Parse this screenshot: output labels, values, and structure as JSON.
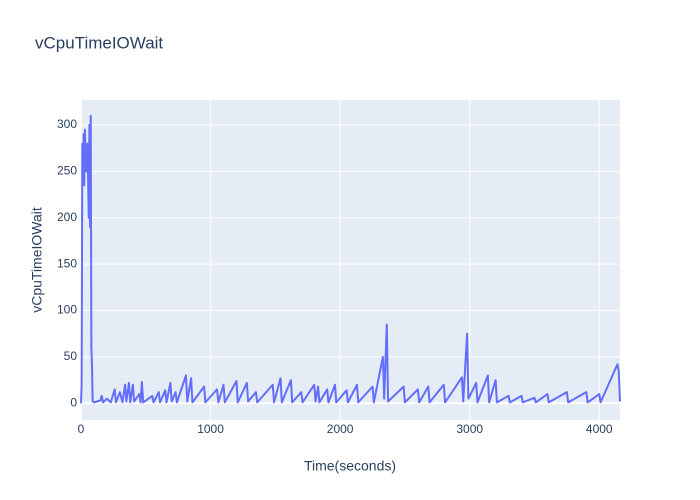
{
  "chart_data": {
    "type": "line",
    "title": "vCpuTimeIOWait",
    "x_label": "Time(seconds)",
    "y_label": "vCpuTimeIOWait",
    "color": "#636efa",
    "grid": true,
    "x": [
      0,
      5,
      10,
      15,
      20,
      25,
      30,
      40,
      50,
      60,
      65,
      70,
      75,
      80,
      85,
      90,
      100,
      150,
      160,
      170,
      200,
      230,
      260,
      270,
      300,
      320,
      340,
      350,
      370,
      380,
      400,
      410,
      450,
      460,
      470,
      480,
      550,
      560,
      600,
      610,
      650,
      660,
      690,
      700,
      730,
      740,
      810,
      820,
      850,
      860,
      950,
      960,
      1050,
      1060,
      1100,
      1110,
      1200,
      1210,
      1280,
      1290,
      1350,
      1360,
      1480,
      1490,
      1540,
      1550,
      1620,
      1630,
      1700,
      1710,
      1800,
      1810,
      1830,
      1840,
      1900,
      1910,
      1960,
      1970,
      2050,
      2060,
      2130,
      2140,
      2250,
      2260,
      2330,
      2340,
      2360,
      2370,
      2490,
      2500,
      2600,
      2610,
      2680,
      2690,
      2800,
      2810,
      2940,
      2950,
      2980,
      2990,
      3050,
      3060,
      3140,
      3150,
      3200,
      3210,
      3300,
      3310,
      3400,
      3410,
      3500,
      3510,
      3600,
      3610,
      3750,
      3760,
      3900,
      3910,
      4000,
      4010,
      4140,
      4150,
      4160
    ],
    "values": [
      0,
      20,
      280,
      240,
      290,
      235,
      295,
      250,
      280,
      200,
      300,
      190,
      310,
      60,
      40,
      2,
      1,
      3,
      8,
      1,
      5,
      1,
      15,
      1,
      12,
      1,
      20,
      2,
      22,
      1,
      20,
      2,
      10,
      1,
      23,
      1,
      8,
      1,
      12,
      1,
      14,
      1,
      22,
      2,
      12,
      1,
      30,
      2,
      27,
      1,
      18,
      1,
      15,
      1,
      20,
      1,
      24,
      1,
      22,
      2,
      12,
      1,
      20,
      1,
      27,
      1,
      25,
      1,
      12,
      1,
      20,
      2,
      18,
      1,
      15,
      1,
      20,
      1,
      14,
      1,
      20,
      1,
      18,
      1,
      50,
      5,
      85,
      2,
      18,
      1,
      15,
      1,
      18,
      1,
      20,
      1,
      28,
      2,
      75,
      5,
      22,
      1,
      30,
      1,
      25,
      1,
      8,
      1,
      8,
      1,
      6,
      1,
      10,
      1,
      12,
      1,
      12,
      1,
      10,
      1,
      42,
      35,
      2
    ],
    "xlim": [
      0,
      4160
    ],
    "ylim": [
      -18,
      327
    ],
    "xticks": [
      0,
      1000,
      2000,
      3000,
      4000
    ],
    "yticks": [
      0,
      50,
      100,
      150,
      200,
      250,
      300
    ]
  }
}
